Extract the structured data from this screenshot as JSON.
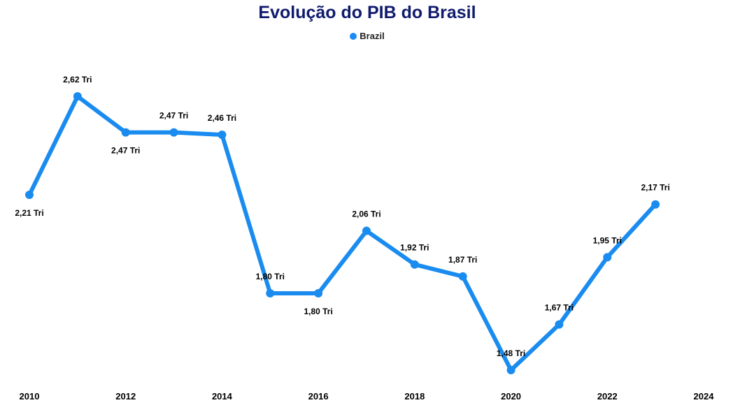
{
  "chart_data": {
    "type": "line",
    "title": "Evolução do PIB do Brasil",
    "xlabel": "",
    "ylabel": "",
    "x": [
      2010,
      2011,
      2012,
      2013,
      2014,
      2015,
      2016,
      2017,
      2018,
      2019,
      2020,
      2021,
      2022,
      2023
    ],
    "x_ticks": [
      "2010",
      "2012",
      "2014",
      "2016",
      "2018",
      "2020",
      "2022",
      "2024"
    ],
    "xlim": [
      2010,
      2024
    ],
    "ylim": [
      1.48,
      2.62
    ],
    "grid": false,
    "legend": "top-center",
    "series": [
      {
        "name": "Brazil",
        "color": "#1a8cf0",
        "values": [
          2.21,
          2.62,
          2.47,
          2.47,
          2.46,
          1.8,
          1.8,
          2.06,
          1.92,
          1.87,
          1.48,
          1.67,
          1.95,
          2.17
        ],
        "labels": [
          "2,21 Tri",
          "2,62 Tri",
          "2,47 Tri",
          "2,47 Tri",
          "2,46 Tri",
          "1,80 Tri",
          "1,80 Tri",
          "2,06 Tri",
          "1,92 Tri",
          "1,87 Tri",
          "1,48 Tri",
          "1,67 Tri",
          "1,95 Tri",
          "2,17 Tri"
        ],
        "label_positions": [
          "below",
          "above",
          "below",
          "above",
          "above",
          "above",
          "below",
          "above",
          "above",
          "above",
          "above",
          "above",
          "above",
          "above"
        ]
      }
    ]
  }
}
